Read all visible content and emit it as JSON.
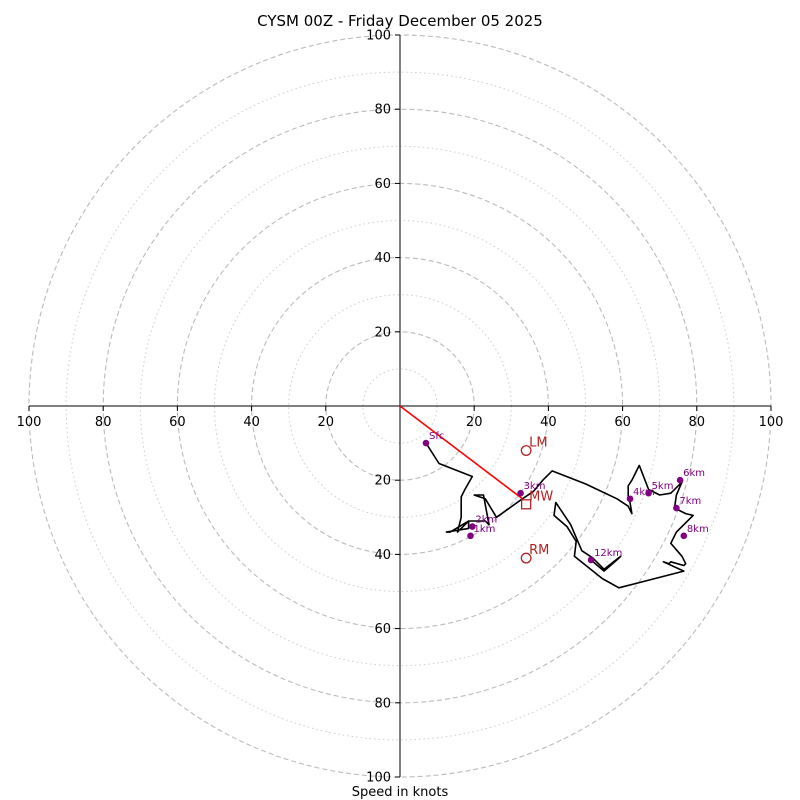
{
  "chart_data": {
    "type": "scatter",
    "title": "CYSM 00Z - Friday December 05 2025",
    "xlabel": "Speed in knots",
    "ylabel": "",
    "xlim": [
      -100,
      100
    ],
    "ylim": [
      -100,
      100
    ],
    "ring_major": [
      20,
      40,
      60,
      80,
      100
    ],
    "ring_minor": [
      10,
      30,
      50,
      70,
      90
    ],
    "tick_labels": [
      "20",
      "40",
      "60",
      "80",
      "100"
    ],
    "colors": {
      "hodograph": "#000000",
      "height_points": "#800080",
      "motion": "#b22222",
      "shear_vector": "#ff0000",
      "ring": "#bbbbbb",
      "axis": "#000000"
    },
    "hodograph": {
      "u": [
        7,
        10.5,
        19.5,
        17.5,
        16.5,
        16.5,
        16.5,
        15.5,
        18.5,
        13.5,
        12.5,
        18.5,
        18.5,
        23,
        24,
        22.5,
        20,
        23,
        26,
        33,
        36,
        38.5,
        41,
        50,
        58.5,
        61.5,
        62,
        62.5,
        62,
        61.5,
        61.5,
        62.5,
        64,
        64.5,
        67,
        70,
        73,
        76,
        74.5,
        74,
        77,
        79,
        74.5,
        73,
        76,
        77,
        76.5,
        73,
        72.5,
        71,
        76.5,
        59,
        54.5,
        47,
        47.5,
        45,
        41.5,
        42,
        46,
        49,
        52,
        55,
        59.5,
        59,
        55,
        51.5
      ],
      "v": [
        -10,
        -15.5,
        -19,
        -22.5,
        -24.5,
        -26.5,
        -30,
        -34,
        -31,
        -34,
        -34,
        -33,
        -31,
        -31,
        -32,
        -24,
        -24,
        -25,
        -30,
        -25,
        -23,
        -20,
        -17.5,
        -21,
        -25,
        -27,
        -28,
        -29,
        -26,
        -24.5,
        -21.5,
        -20,
        -17,
        -16,
        -22.5,
        -24,
        -23.5,
        -20.5,
        -24,
        -27.5,
        -29,
        -29.5,
        -34,
        -37,
        -40.5,
        -42.5,
        -43,
        -42,
        -42.5,
        -42,
        -44.5,
        -49,
        -46.5,
        -40.5,
        -36.5,
        -32.5,
        -29.5,
        -26,
        -32,
        -39,
        -41,
        -44,
        -40.5,
        -41,
        -44.5,
        -41.5
      ]
    },
    "height_points": [
      {
        "label": "Sfc",
        "u": 7,
        "v": -10
      },
      {
        "label": "1km",
        "u": 19,
        "v": -35
      },
      {
        "label": "2km",
        "u": 19.5,
        "v": -32.5
      },
      {
        "label": "3km",
        "u": 32.5,
        "v": -23.5
      },
      {
        "label": "4km",
        "u": 62,
        "v": -25
      },
      {
        "label": "5km",
        "u": 67,
        "v": -23.5
      },
      {
        "label": "6km",
        "u": 75.5,
        "v": -20
      },
      {
        "label": "7km",
        "u": 74.5,
        "v": -27.5
      },
      {
        "label": "8km",
        "u": 76.5,
        "v": -35
      },
      {
        "label": "12km",
        "u": 51.5,
        "v": -41.5
      }
    ],
    "storm_motion": [
      {
        "label": "LM",
        "u": 34,
        "v": -12,
        "marker": "circle"
      },
      {
        "label": "MW",
        "u": 34,
        "v": -26.5,
        "marker": "square"
      },
      {
        "label": "RM",
        "u": 34,
        "v": -41,
        "marker": "circle"
      }
    ],
    "shear_vector": {
      "from": [
        0,
        0
      ],
      "to": [
        33,
        -25
      ]
    },
    "grid": true
  }
}
